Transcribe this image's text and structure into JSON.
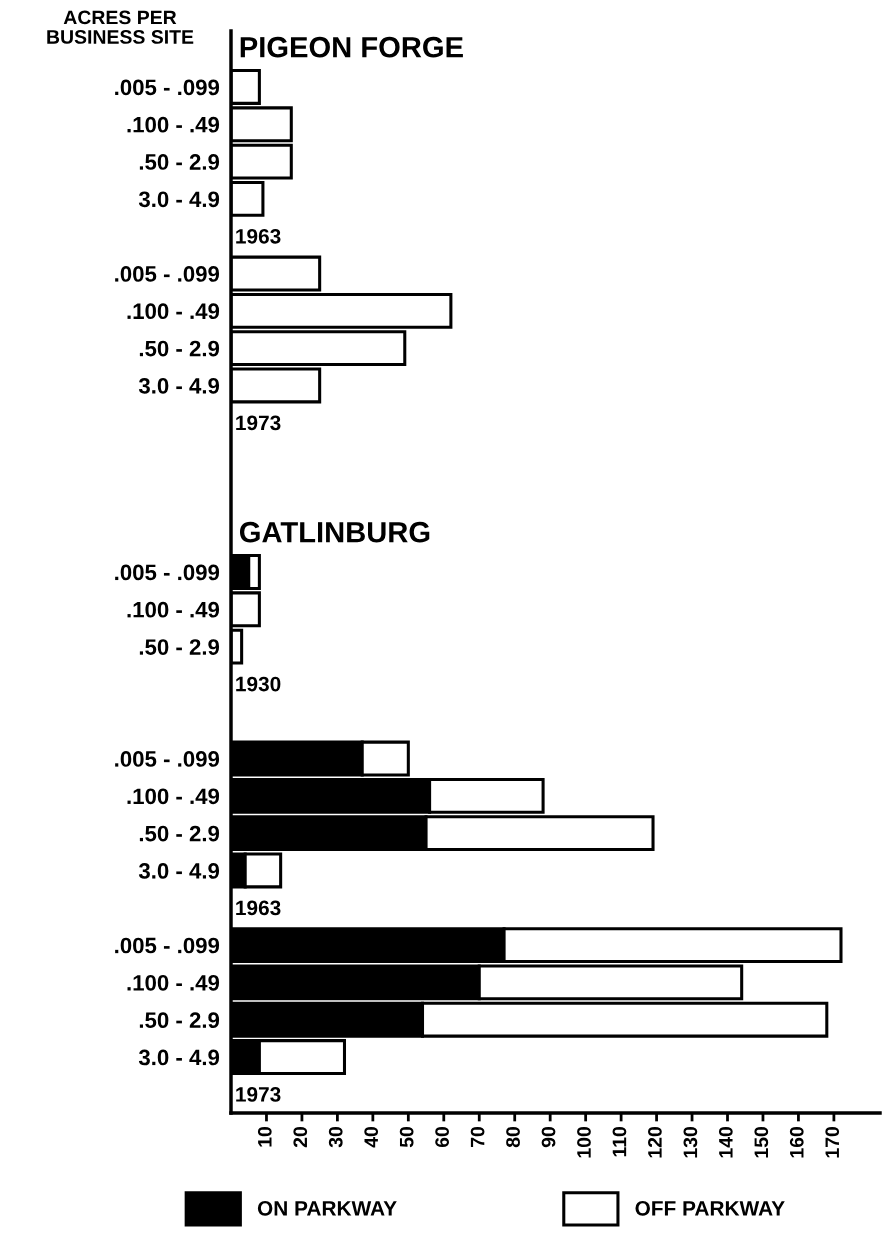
{
  "chart_data": {
    "type": "bar",
    "orientation": "horizontal",
    "stacked": true,
    "ylabel": "ACRES PER\nBUSINESS SITE",
    "categories": [
      null,
      ".005 - .099",
      ".100 - .49",
      ".50 - 2.9",
      "3.0 - 4.9",
      null,
      ".005 - .099",
      ".100 - .49",
      ".50 - 2.9",
      "3.0 - 4.9",
      null,
      null,
      null,
      null,
      ".005 - .099",
      ".100 - .49",
      ".50 - 2.9",
      null,
      null,
      ".005 - .099",
      ".100 - .49",
      ".50 - 2.9",
      "3.0 - 4.9",
      null,
      ".005 - .099",
      ".100 - .49",
      ".50 - 2.9",
      "3.0 - 4.9",
      null
    ],
    "annotations": [
      "PIGEON FORGE",
      "1963",
      "1973",
      "GATLINBURG",
      "1930",
      "1963",
      "1973"
    ],
    "xlim": [
      0,
      183
    ],
    "xticks": [
      10,
      20,
      30,
      40,
      50,
      60,
      70,
      80,
      90,
      100,
      110,
      120,
      130,
      140,
      150,
      160,
      170
    ],
    "legend": "bottom",
    "series": [
      {
        "name": "ON PARKWAY",
        "color": "#000000",
        "values": [
          null,
          null,
          null,
          null,
          null,
          null,
          null,
          null,
          null,
          null,
          null,
          null,
          null,
          null,
          5,
          null,
          null,
          null,
          null,
          37,
          56,
          55,
          4,
          null,
          77,
          70,
          54,
          8,
          null
        ]
      },
      {
        "name": "OFF PARKWAY",
        "color": "#ffffff",
        "values": [
          null,
          8,
          17,
          17,
          9,
          null,
          25,
          62,
          49,
          25,
          null,
          null,
          null,
          null,
          3,
          8,
          3,
          null,
          null,
          13,
          32,
          64,
          10,
          null,
          95,
          74,
          114,
          24,
          null
        ]
      }
    ]
  }
}
